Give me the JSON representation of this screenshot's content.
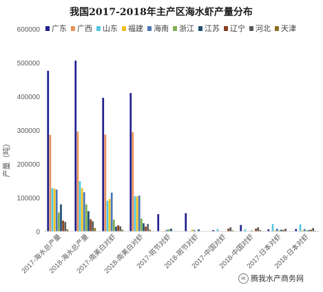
{
  "chart_data": {
    "type": "bar",
    "title": "我国2017-2018年主产区海水虾产量分布",
    "ylabel": "产量（吨）",
    "xlabel": "",
    "ylim": [
      0,
      600000
    ],
    "yticks": [
      0,
      100000,
      200000,
      300000,
      400000,
      500000,
      600000
    ],
    "grid": false,
    "legend_position": "top",
    "categories": [
      "2017-海水总产量",
      "2018-海水总产量",
      "2017-南美白对虾",
      "2018-南美白对虾",
      "2017-斑节对虾",
      "2018-斑节对虾",
      "2017-中国对虾",
      "2018-中国对虾",
      "2017-日本对虾",
      "2018-日本对虾"
    ],
    "series": [
      {
        "name": "广东",
        "color": "#1f1f8f",
        "values": [
          476000,
          506000,
          396000,
          410000,
          51000,
          54000,
          4000,
          19000,
          6000,
          7000
        ]
      },
      {
        "name": "广西",
        "color": "#e8905a",
        "values": [
          286000,
          296000,
          287000,
          294000,
          1000,
          1000,
          0,
          0,
          0,
          0
        ]
      },
      {
        "name": "山东",
        "color": "#4fc8e0",
        "values": [
          128000,
          149000,
          91000,
          104000,
          500,
          300,
          7000,
          6000,
          22000,
          21000
        ]
      },
      {
        "name": "福建",
        "color": "#f0c020",
        "values": [
          127000,
          128000,
          96000,
          104000,
          2000,
          6000,
          1000,
          1000,
          3000,
          3000
        ]
      },
      {
        "name": "海南",
        "color": "#4a78b8",
        "values": [
          124000,
          116000,
          115000,
          106000,
          5000,
          4000,
          0,
          0,
          8000,
          7000
        ]
      },
      {
        "name": "浙江",
        "color": "#80b050",
        "values": [
          56000,
          80000,
          35000,
          38000,
          6000,
          1000,
          1000,
          3000,
          3000,
          3000
        ]
      },
      {
        "name": "江苏",
        "color": "#1f4f6f",
        "values": [
          80000,
          60000,
          14000,
          24000,
          8000,
          6000,
          1000,
          1000,
          5000,
          4000
        ]
      },
      {
        "name": "辽宁",
        "color": "#8a4020",
        "values": [
          32000,
          36000,
          18000,
          14000,
          0,
          0,
          8000,
          8000,
          4000,
          5000
        ]
      },
      {
        "name": "河北",
        "color": "#5a5a5a",
        "values": [
          28000,
          30000,
          15000,
          22000,
          0,
          0,
          12000,
          12000,
          8000,
          10000
        ]
      },
      {
        "name": "天津",
        "color": "#8a7020",
        "values": [
          6000,
          10000,
          5000,
          5000,
          0,
          0,
          3000,
          4000,
          0,
          2000
        ]
      }
    ]
  },
  "watermark": "腾我水产商务网"
}
